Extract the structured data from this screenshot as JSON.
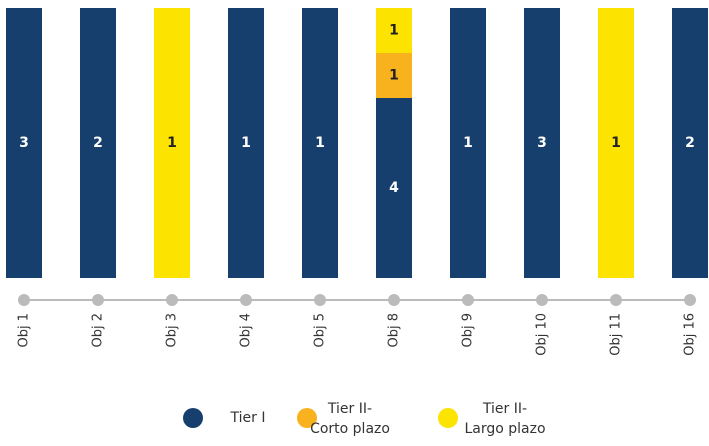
{
  "chart_data": {
    "type": "bar",
    "stacked": "percent",
    "categories": [
      "Obj 1",
      "Obj 2",
      "Obj 3",
      "Obj 4",
      "Obj 5",
      "Obj 8",
      "Obj 9",
      "Obj 10",
      "Obj 11",
      "Obj 16"
    ],
    "series": [
      {
        "name": "Tier I",
        "color": "#173f6e",
        "values": [
          3,
          2,
          null,
          1,
          1,
          4,
          1,
          3,
          null,
          2
        ]
      },
      {
        "name": "Tier II-Corto plazo",
        "color": "#f8b21d",
        "values": [
          null,
          null,
          null,
          null,
          null,
          1,
          null,
          null,
          null,
          null
        ]
      },
      {
        "name": "Tier II-Largo plazo",
        "color": "#fde300",
        "values": [
          null,
          null,
          1,
          null,
          null,
          1,
          null,
          null,
          1,
          null
        ]
      }
    ]
  }
}
